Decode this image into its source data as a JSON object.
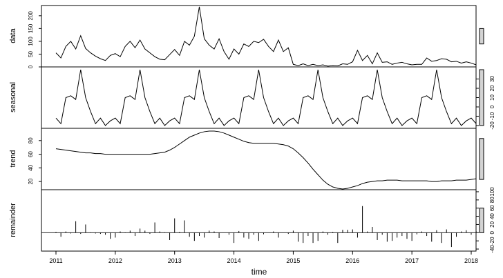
{
  "chart_data": {
    "type": "line",
    "xlabel": "time",
    "x_range": [
      2011,
      2018
    ],
    "x_ticks": [
      "2011",
      "2012",
      "2013",
      "2014",
      "2015",
      "2016",
      "2017",
      "2018"
    ],
    "start": 2011.0,
    "frequency": 12,
    "panels": [
      {
        "name": "data",
        "kind": "line",
        "ylim": [
          0,
          240
        ],
        "yticks": [
          "0",
          "50",
          "100",
          "150",
          "200"
        ],
        "values": [
          55,
          35,
          80,
          100,
          70,
          122,
          72,
          55,
          42,
          32,
          25,
          45,
          52,
          40,
          80,
          100,
          75,
          105,
          70,
          55,
          40,
          30,
          28,
          48,
          68,
          45,
          100,
          85,
          120,
          235,
          110,
          85,
          70,
          110,
          60,
          30,
          70,
          50,
          90,
          80,
          100,
          95,
          108,
          80,
          60,
          105,
          60,
          75,
          10,
          5,
          12,
          5,
          10,
          5,
          8,
          3,
          5,
          4,
          12,
          10,
          20,
          65,
          25,
          45,
          12,
          55,
          18,
          20,
          10,
          15,
          18,
          12,
          8,
          10,
          10,
          35,
          22,
          25,
          32,
          30,
          20,
          22,
          15,
          20,
          15,
          8
        ],
        "bar_range": 60
      },
      {
        "name": "seasonal",
        "kind": "line",
        "ylim": [
          -23,
          43
        ],
        "yticks": [
          "-20",
          "-10",
          "0",
          "10",
          "20",
          "30"
        ],
        "pattern": [
          -12,
          -18,
          10,
          12,
          8,
          40,
          10,
          -5,
          -18,
          -12,
          -20,
          -15
        ],
        "bar_range": 60
      },
      {
        "name": "trend",
        "kind": "line",
        "ylim": [
          8,
          98
        ],
        "yticks": [
          "20",
          "40",
          "60",
          "80"
        ],
        "values": [
          68,
          67,
          66,
          65,
          64,
          63,
          62,
          62,
          61,
          61,
          60,
          60,
          60,
          60,
          60,
          60,
          60,
          60,
          60,
          60,
          61,
          62,
          63,
          66,
          70,
          75,
          80,
          85,
          88,
          91,
          93,
          94,
          94,
          93,
          91,
          88,
          85,
          82,
          79,
          77,
          76,
          76,
          76,
          76,
          76,
          75,
          74,
          72,
          68,
          62,
          55,
          47,
          38,
          30,
          22,
          16,
          12,
          10,
          9,
          10,
          12,
          14,
          17,
          19,
          20,
          21,
          21,
          22,
          22,
          22,
          21,
          21,
          21,
          21,
          21,
          21,
          20,
          20,
          21,
          21,
          21,
          22,
          22,
          22,
          23,
          24
        ],
        "bar_range": 60
      },
      {
        "name": "remainder",
        "kind": "bars",
        "ylim": [
          -45,
          105
        ],
        "yticks": [
          "-40",
          "-20",
          "0",
          "20",
          "40",
          "60",
          "80",
          "100"
        ],
        "values": [
          2,
          -10,
          3,
          -2,
          28,
          -3,
          20,
          1,
          -2,
          -3,
          -5,
          -15,
          -12,
          3,
          -1,
          5,
          -8,
          10,
          5,
          -3,
          25,
          3,
          1,
          -18,
          35,
          2,
          30,
          -10,
          -20,
          -8,
          -12,
          5,
          3,
          -13,
          0,
          -5,
          -25,
          4,
          -12,
          -15,
          -5,
          -20,
          -4,
          0,
          3,
          -12,
          0,
          -3,
          5,
          -22,
          -25,
          -8,
          -25,
          -20,
          3,
          -5,
          2,
          -25,
          7,
          7,
          8,
          -12,
          65,
          3,
          14,
          -18,
          -5,
          -22,
          -20,
          -12,
          -8,
          -15,
          -20,
          -4,
          3,
          -8,
          -22,
          6,
          -25,
          8,
          -35,
          -10,
          3,
          6,
          -5,
          4
        ],
        "bar_range": 60
      }
    ]
  }
}
